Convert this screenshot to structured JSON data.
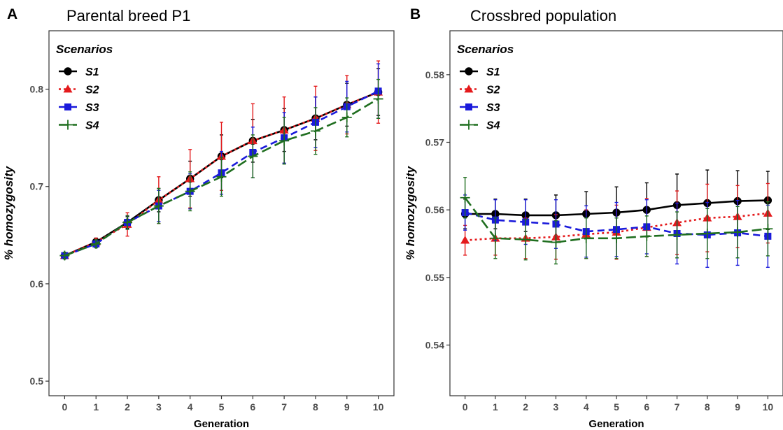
{
  "chart_data": [
    {
      "type": "line",
      "panel_label": "A",
      "title": "Parental breed P1",
      "xlabel": "Generation",
      "ylabel": "% homozygosity",
      "x": [
        0,
        1,
        2,
        3,
        4,
        5,
        6,
        7,
        8,
        9,
        10
      ],
      "xlim": [
        -0.5,
        10.5
      ],
      "ylim": [
        0.485,
        0.86
      ],
      "xticks": [
        "0",
        "1",
        "2",
        "3",
        "4",
        "5",
        "6",
        "7",
        "8",
        "9",
        "10"
      ],
      "yticks": [
        0.5,
        0.6,
        0.7,
        0.8
      ],
      "ytick_labels": [
        "0.5",
        "0.6",
        "0.7",
        "0.8"
      ],
      "grid": false,
      "legend": {
        "title": "Scenarios",
        "position": "top-left"
      },
      "series": [
        {
          "name": "S1",
          "color": "#000000",
          "marker": "circle",
          "dash": "solid",
          "values": [
            0.629,
            0.643,
            0.663,
            0.686,
            0.708,
            0.731,
            0.747,
            0.758,
            0.77,
            0.784,
            0.797
          ],
          "err": [
            0.003,
            0.004,
            0.006,
            0.012,
            0.018,
            0.022,
            0.022,
            0.022,
            0.022,
            0.022,
            0.024
          ]
        },
        {
          "name": "S2",
          "color": "#e41a1c",
          "marker": "triangle",
          "dash": "dotted",
          "values": [
            0.629,
            0.643,
            0.661,
            0.686,
            0.708,
            0.731,
            0.747,
            0.758,
            0.77,
            0.784,
            0.797
          ],
          "err": [
            0.003,
            0.004,
            0.012,
            0.024,
            0.03,
            0.035,
            0.038,
            0.034,
            0.033,
            0.03,
            0.032
          ]
        },
        {
          "name": "S3",
          "color": "#1a1adb",
          "marker": "square",
          "dash": "dashed",
          "values": [
            0.629,
            0.641,
            0.663,
            0.68,
            0.695,
            0.714,
            0.735,
            0.75,
            0.766,
            0.782,
            0.798
          ],
          "err": [
            0.003,
            0.004,
            0.007,
            0.016,
            0.018,
            0.022,
            0.026,
            0.026,
            0.026,
            0.026,
            0.028
          ]
        },
        {
          "name": "S4",
          "color": "#1f6e1f",
          "marker": "plus",
          "dash": "longdash",
          "values": [
            0.629,
            0.641,
            0.663,
            0.68,
            0.695,
            0.71,
            0.731,
            0.747,
            0.757,
            0.771,
            0.79
          ],
          "err": [
            0.003,
            0.004,
            0.007,
            0.018,
            0.02,
            0.02,
            0.022,
            0.024,
            0.024,
            0.02,
            0.02
          ]
        }
      ]
    },
    {
      "type": "line",
      "panel_label": "B",
      "title": "Crossbred population",
      "xlabel": "Generation",
      "ylabel": "% homozygosity",
      "x": [
        0,
        1,
        2,
        3,
        4,
        5,
        6,
        7,
        8,
        9,
        10
      ],
      "xlim": [
        -0.5,
        10.5
      ],
      "ylim": [
        0.5325,
        0.5865
      ],
      "xticks": [
        "0",
        "1",
        "2",
        "3",
        "4",
        "5",
        "6",
        "7",
        "8",
        "9",
        "10"
      ],
      "yticks": [
        0.54,
        0.55,
        0.56,
        0.57,
        0.58
      ],
      "ytick_labels": [
        "0.54",
        "0.55",
        "0.56",
        "0.57",
        "0.58"
      ],
      "grid": false,
      "legend": {
        "title": "Scenarios",
        "position": "top-left"
      },
      "series": [
        {
          "name": "S1",
          "color": "#000000",
          "marker": "circle",
          "dash": "solid",
          "values": [
            0.5594,
            0.5594,
            0.5592,
            0.5592,
            0.5594,
            0.5596,
            0.56,
            0.5607,
            0.561,
            0.5613,
            0.5614
          ],
          "err": [
            0.0022,
            0.0022,
            0.0024,
            0.003,
            0.0033,
            0.0038,
            0.004,
            0.0046,
            0.0049,
            0.0045,
            0.0043
          ]
        },
        {
          "name": "S2",
          "color": "#e41a1c",
          "marker": "triangle",
          "dash": "dotted",
          "values": [
            0.5555,
            0.5558,
            0.5558,
            0.556,
            0.5564,
            0.5567,
            0.5574,
            0.5581,
            0.5588,
            0.559,
            0.5595
          ],
          "err": [
            0.0022,
            0.0025,
            0.003,
            0.0033,
            0.0036,
            0.004,
            0.0043,
            0.0047,
            0.005,
            0.0046,
            0.0044
          ]
        },
        {
          "name": "S3",
          "color": "#1a1adb",
          "marker": "square",
          "dash": "dashed",
          "values": [
            0.5596,
            0.5585,
            0.5582,
            0.5579,
            0.5568,
            0.5571,
            0.5575,
            0.5565,
            0.5563,
            0.5566,
            0.5561
          ],
          "err": [
            0.0026,
            0.003,
            0.0033,
            0.0036,
            0.0038,
            0.004,
            0.004,
            0.0045,
            0.0048,
            0.0048,
            0.0046
          ]
        },
        {
          "name": "S4",
          "color": "#1f6e1f",
          "marker": "plus",
          "dash": "longdash",
          "values": [
            0.5618,
            0.5558,
            0.5556,
            0.5552,
            0.5558,
            0.5558,
            0.5561,
            0.5563,
            0.5565,
            0.5567,
            0.5572
          ],
          "err": [
            0.003,
            0.003,
            0.003,
            0.0032,
            0.003,
            0.003,
            0.003,
            0.0034,
            0.0037,
            0.0038,
            0.004
          ]
        }
      ]
    }
  ]
}
